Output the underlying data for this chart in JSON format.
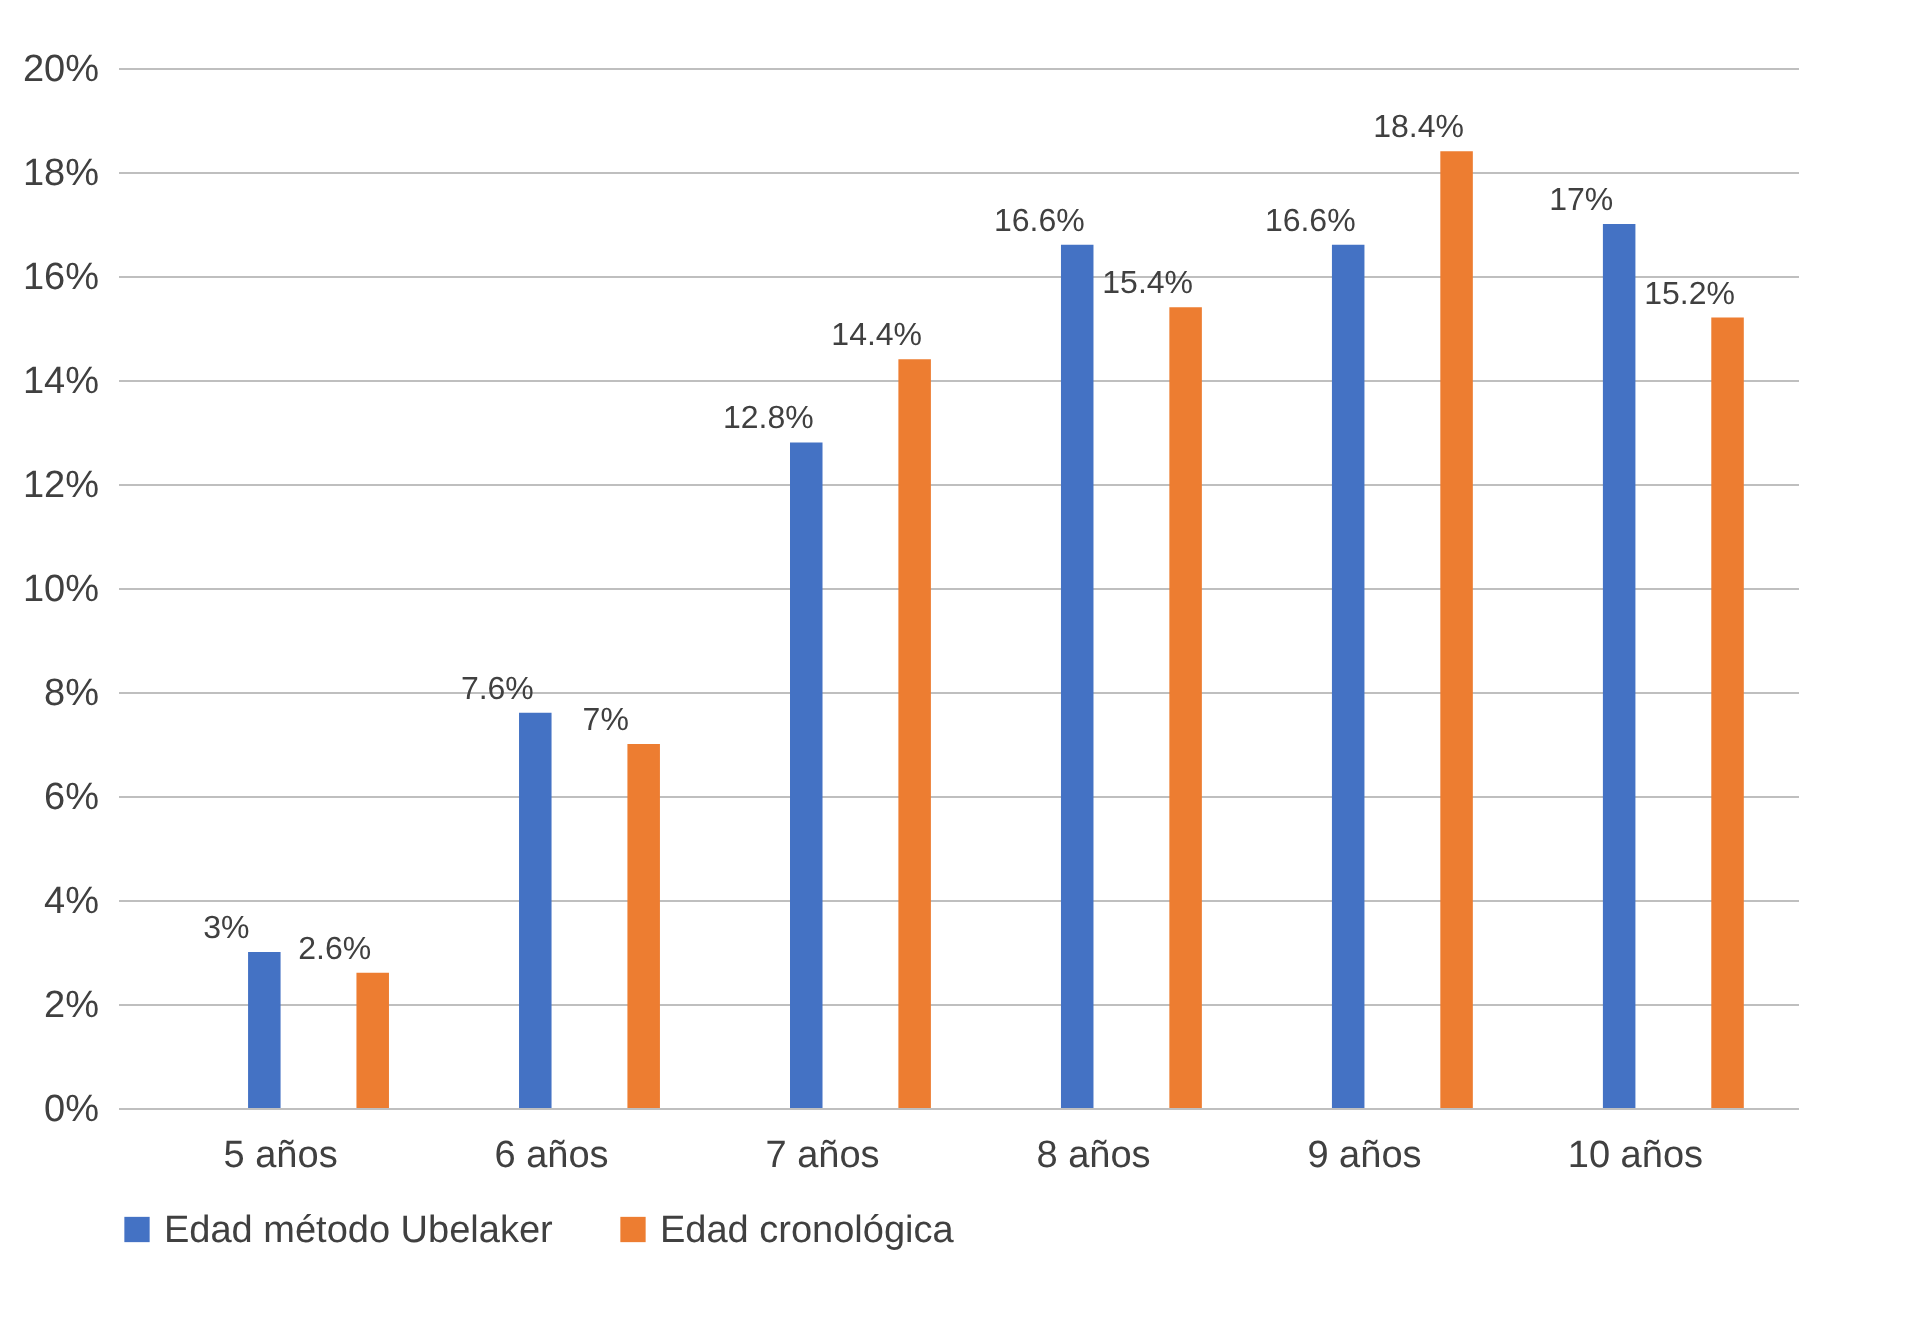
{
  "chart_data": {
    "type": "bar",
    "categories": [
      "5 años",
      "6 años",
      "7 años",
      "8 años",
      "9 años",
      "10 años"
    ],
    "series": [
      {
        "name": "Edad método Ubelaker",
        "color": "#4472c4",
        "values": [
          3,
          7.6,
          12.8,
          16.6,
          16.6,
          17
        ],
        "value_labels": [
          "3%",
          "7.6%",
          "12.8%",
          "16.6%",
          "16.6%",
          "17%"
        ]
      },
      {
        "name": "Edad cronológica",
        "color": "#ed7d31",
        "values": [
          2.6,
          7,
          14.4,
          15.4,
          18.4,
          15.2
        ],
        "value_labels": [
          "2.6%",
          "7%",
          "14.4%",
          "15.4%",
          "18.4%",
          "15.2%"
        ]
      }
    ],
    "ylim": [
      0,
      20
    ],
    "yticks": [
      {
        "value": 0,
        "label": "0%"
      },
      {
        "value": 2,
        "label": "2%"
      },
      {
        "value": 4,
        "label": "4%"
      },
      {
        "value": 6,
        "label": "6%"
      },
      {
        "value": 8,
        "label": "8%"
      },
      {
        "value": 10,
        "label": "10%"
      },
      {
        "value": 12,
        "label": "12%"
      },
      {
        "value": 14,
        "label": "14%"
      },
      {
        "value": 16,
        "label": "16%"
      },
      {
        "value": 18,
        "label": "18%"
      },
      {
        "value": 20,
        "label": "20%"
      }
    ],
    "grid": "y",
    "legend": "bottom"
  }
}
